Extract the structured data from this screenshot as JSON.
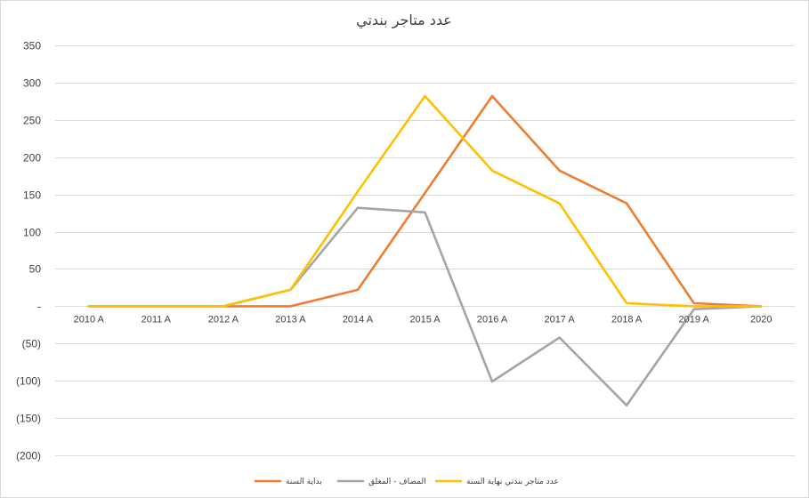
{
  "chart_data": {
    "type": "line",
    "title": "عدد متاجر بندتي",
    "xlabel": "",
    "ylabel": "",
    "categories": [
      "2010 A",
      "2011 A",
      "2012 A",
      "2013 A",
      "2014 A",
      "2015 A",
      "2016 A",
      "2017 A",
      "2018 A",
      "2019 A",
      "2020"
    ],
    "series": [
      {
        "name": "بداية السنة",
        "color": "#ED7D31",
        "values": [
          0,
          0,
          0,
          0,
          22,
          152,
          282,
          182,
          138,
          4,
          0
        ]
      },
      {
        "name": "المضاف - المغلق",
        "color": "#A5A5A5",
        "values": [
          0,
          0,
          0,
          22,
          132,
          126,
          -101,
          -42,
          -133,
          -4,
          0
        ]
      },
      {
        "name": "عدد متاجر بندتي نهاية السنة",
        "color": "#FFC000",
        "values": [
          0,
          0,
          0,
          22,
          154,
          282,
          182,
          138,
          4,
          0,
          0
        ]
      }
    ],
    "ylim": [
      -200,
      350
    ],
    "yticks": [
      350,
      300,
      250,
      200,
      150,
      100,
      50,
      0,
      -50,
      -100,
      -150,
      -200
    ],
    "ytick_labels": [
      "350",
      "300",
      "250",
      "200",
      "150",
      "100",
      "50",
      "-",
      "(50)",
      "(100)",
      "(150)",
      "(200)"
    ],
    "grid": true,
    "legend_position": "bottom"
  }
}
